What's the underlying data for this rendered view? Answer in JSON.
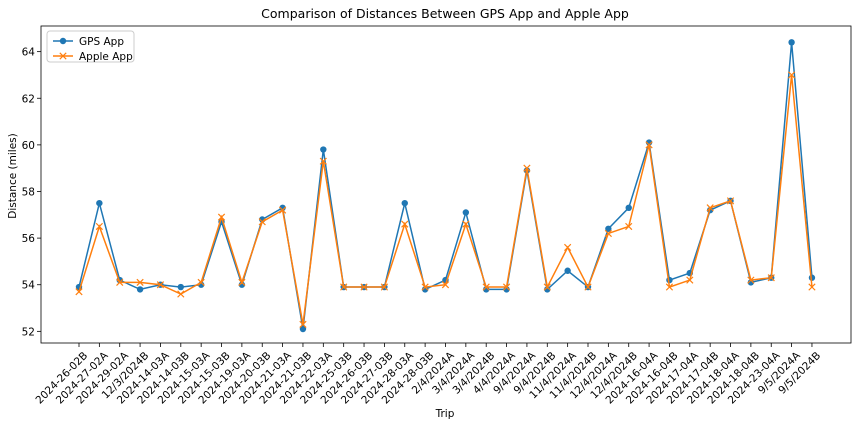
{
  "chart_data": {
    "type": "line",
    "title": "Comparison of Distances Between GPS App and Apple App",
    "xlabel": "Trip",
    "ylabel": "Distance (miles)",
    "ylim": [
      51.5,
      65.1
    ],
    "yticks": [
      52,
      54,
      56,
      58,
      60,
      62,
      64
    ],
    "grid": false,
    "legend_position": "top-left",
    "categories": [
      "2024-26-02B",
      "2024-27-02A",
      "2024-29-02A",
      "12/3/2024B",
      "2024-14-03A",
      "2024-14-03B",
      "2024-15-03A",
      "2024-15-03B",
      "2024-19-03A",
      "2024-20-03B",
      "2024-21-03A",
      "2024-21-03B",
      "2024-22-03A",
      "2024-25-03B",
      "2024-26-03B",
      "2024-27-03B",
      "2024-28-03A",
      "2024-28-03B",
      "2/4/2024A",
      "3/4/2024A",
      "3/4/2024B",
      "4/4/2024A",
      "9/4/2024A",
      "9/4/2024B",
      "11/4/2024A",
      "11/4/2024B",
      "12/4/2024A",
      "12/4/2024B",
      "2024-16-04A",
      "2024-16-04B",
      "2024-17-04A",
      "2024-17-04B",
      "2024-18-04A",
      "2024-18-04B",
      "2024-23-04A",
      "9/5/2024A",
      "9/5/2024B"
    ],
    "series": [
      {
        "name": "GPS App",
        "color": "#1f77b4",
        "marker": "circle",
        "values": [
          53.9,
          57.5,
          54.2,
          53.8,
          54.0,
          53.9,
          54.0,
          56.7,
          54.0,
          56.8,
          57.3,
          52.1,
          59.8,
          53.9,
          53.9,
          53.9,
          57.5,
          53.8,
          54.2,
          57.1,
          53.8,
          53.8,
          58.9,
          53.8,
          54.6,
          53.9,
          56.4,
          57.3,
          60.1,
          54.2,
          54.5,
          57.2,
          57.6,
          54.1,
          54.3,
          64.4,
          54.3
        ]
      },
      {
        "name": "Apple App",
        "color": "#ff7f0e",
        "marker": "x",
        "values": [
          53.7,
          56.5,
          54.1,
          54.1,
          54.0,
          53.6,
          54.1,
          56.9,
          54.1,
          56.7,
          57.2,
          52.3,
          59.3,
          53.9,
          53.9,
          53.9,
          56.6,
          53.9,
          54.0,
          56.6,
          53.9,
          53.9,
          59.0,
          53.9,
          55.6,
          53.9,
          56.2,
          56.5,
          60.0,
          53.9,
          54.2,
          57.3,
          57.6,
          54.2,
          54.3,
          63.0,
          53.9
        ]
      }
    ]
  }
}
